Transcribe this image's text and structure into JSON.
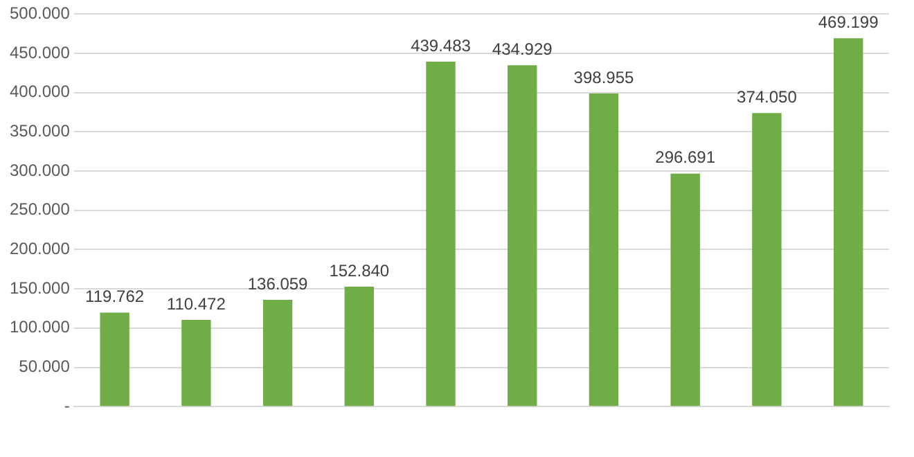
{
  "chart_data": {
    "type": "bar",
    "categories": [
      null,
      null,
      null,
      null,
      null,
      null,
      null,
      null,
      null,
      null
    ],
    "values": [
      119762,
      110472,
      136059,
      152840,
      439483,
      434929,
      398955,
      296691,
      374050,
      469199
    ],
    "value_labels": [
      "119.762",
      "110.472",
      "136.059",
      "152.840",
      "439.483",
      "434.929",
      "398.955",
      "296.691",
      "374.050",
      "469.199"
    ],
    "color": "#70ad47",
    "ylim": [
      0,
      500000
    ],
    "yticks": [
      {
        "value": 0,
        "label": "-"
      },
      {
        "value": 50000,
        "label": "50.000"
      },
      {
        "value": 100000,
        "label": "100.000"
      },
      {
        "value": 150000,
        "label": "150.000"
      },
      {
        "value": 200000,
        "label": "200.000"
      },
      {
        "value": 250000,
        "label": "250.000"
      },
      {
        "value": 300000,
        "label": "300.000"
      },
      {
        "value": 350000,
        "label": "350.000"
      },
      {
        "value": 400000,
        "label": "400.000"
      },
      {
        "value": 450000,
        "label": "450.000"
      },
      {
        "value": 500000,
        "label": "500.000"
      }
    ],
    "grid": "y"
  }
}
